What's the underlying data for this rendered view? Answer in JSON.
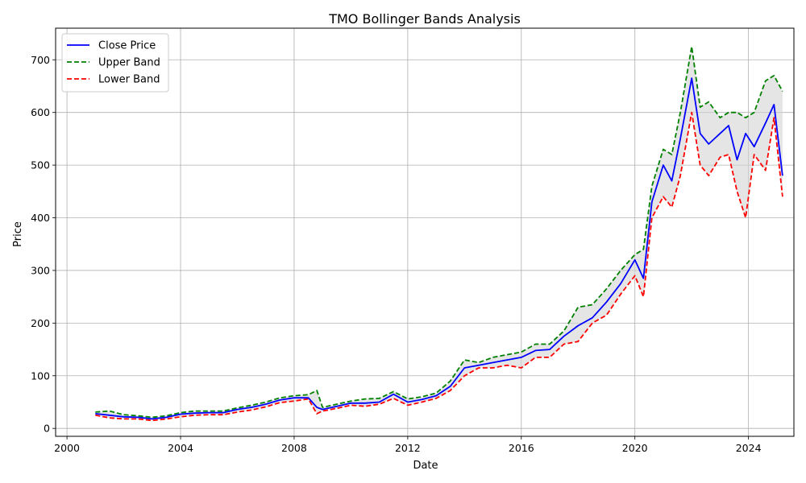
{
  "chart_data": {
    "type": "line",
    "title": "TMO Bollinger Bands Analysis",
    "xlabel": "Date",
    "ylabel": "Price",
    "xlim": [
      1999.6,
      2025.6
    ],
    "ylim": [
      -15,
      760
    ],
    "x_ticks": [
      2000,
      2004,
      2008,
      2012,
      2016,
      2020,
      2024
    ],
    "x_tick_labels": [
      "2000",
      "2004",
      "2008",
      "2012",
      "2016",
      "2020",
      "2024"
    ],
    "y_ticks": [
      0,
      100,
      200,
      300,
      400,
      500,
      600,
      700
    ],
    "y_tick_labels": [
      "0",
      "100",
      "200",
      "300",
      "400",
      "500",
      "600",
      "700"
    ],
    "grid": true,
    "legend_position": "top-left",
    "band_fill_color": "#d3d3d3",
    "x": [
      2001.0,
      2001.5,
      2002.0,
      2002.5,
      2003.0,
      2003.5,
      2004.0,
      2004.5,
      2005.0,
      2005.5,
      2006.0,
      2006.5,
      2007.0,
      2007.5,
      2008.0,
      2008.5,
      2008.8,
      2009.0,
      2009.5,
      2010.0,
      2010.5,
      2011.0,
      2011.5,
      2012.0,
      2012.5,
      2013.0,
      2013.5,
      2014.0,
      2014.5,
      2015.0,
      2015.5,
      2016.0,
      2016.5,
      2017.0,
      2017.5,
      2018.0,
      2018.5,
      2019.0,
      2019.5,
      2020.0,
      2020.3,
      2020.6,
      2021.0,
      2021.3,
      2021.6,
      2022.0,
      2022.3,
      2022.6,
      2023.0,
      2023.3,
      2023.6,
      2023.9,
      2024.2,
      2024.6,
      2024.9,
      2025.2
    ],
    "series": [
      {
        "name": "Close Price",
        "color": "#0000ff",
        "style": "solid",
        "values": [
          28,
          25,
          22,
          21,
          18,
          21,
          27,
          29,
          30,
          30,
          36,
          40,
          46,
          54,
          58,
          58,
          40,
          36,
          42,
          48,
          48,
          50,
          65,
          50,
          55,
          62,
          80,
          115,
          120,
          125,
          130,
          135,
          148,
          150,
          175,
          195,
          210,
          240,
          275,
          320,
          285,
          430,
          500,
          470,
          550,
          665,
          560,
          540,
          560,
          575,
          510,
          560,
          535,
          580,
          615,
          480
        ]
      },
      {
        "name": "Upper Band",
        "color": "#008000",
        "style": "dashed",
        "values": [
          31,
          33,
          26,
          24,
          21,
          24,
          30,
          33,
          33,
          33,
          39,
          44,
          50,
          58,
          62,
          64,
          72,
          40,
          46,
          52,
          56,
          57,
          70,
          56,
          60,
          67,
          90,
          130,
          125,
          135,
          140,
          145,
          160,
          160,
          185,
          230,
          235,
          265,
          300,
          330,
          340,
          460,
          530,
          520,
          600,
          725,
          610,
          620,
          590,
          600,
          600,
          590,
          600,
          660,
          670,
          640
        ]
      },
      {
        "name": "Lower Band",
        "color": "#ff0000",
        "style": "dashed",
        "values": [
          25,
          20,
          18,
          18,
          15,
          18,
          22,
          25,
          26,
          26,
          31,
          35,
          41,
          49,
          52,
          56,
          28,
          33,
          38,
          44,
          42,
          46,
          57,
          44,
          50,
          57,
          72,
          100,
          115,
          115,
          120,
          115,
          135,
          135,
          160,
          165,
          200,
          215,
          255,
          290,
          250,
          400,
          440,
          420,
          480,
          600,
          500,
          480,
          515,
          520,
          450,
          400,
          520,
          490,
          590,
          440
        ]
      }
    ]
  }
}
